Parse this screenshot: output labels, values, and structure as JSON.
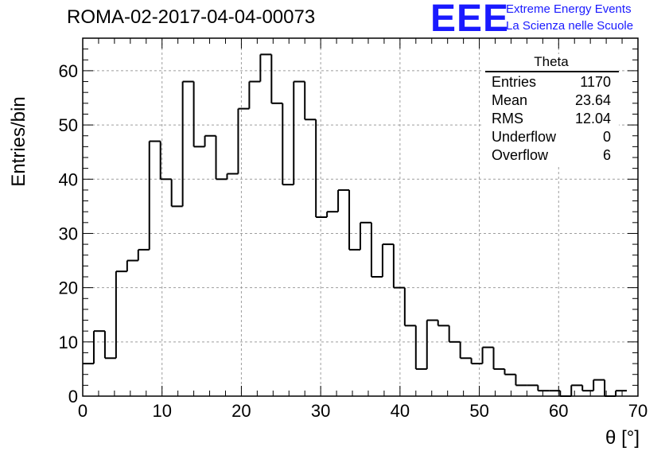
{
  "header": {
    "title": "ROMA-02-2017-04-04-00073",
    "logo_mark": "EEE",
    "logo_line1": "Extreme Energy Events",
    "logo_line2": "La Scienza nelle Scuole"
  },
  "stats": {
    "name": "Theta",
    "rows": [
      {
        "key": "Entries",
        "value": "1170"
      },
      {
        "key": "Mean",
        "value": "23.64"
      },
      {
        "key": "RMS",
        "value": "12.04"
      },
      {
        "key": "Underflow",
        "value": "0"
      },
      {
        "key": "Overflow",
        "value": "6"
      }
    ]
  },
  "colors": {
    "line": "#000000",
    "grid": "#9e9e9e",
    "logo": "#1a1aff"
  },
  "chart_data": {
    "type": "histogram",
    "title": "ROMA-02-2017-04-04-00073",
    "xlabel": "θ [°]",
    "ylabel": "Entries/bin",
    "xlim": [
      0,
      70
    ],
    "ylim": [
      0,
      66
    ],
    "bin_width": 1.4,
    "x_ticks": [
      0,
      10,
      20,
      30,
      40,
      50,
      60,
      70
    ],
    "y_ticks": [
      0,
      10,
      20,
      30,
      40,
      50,
      60
    ],
    "grid": true,
    "legend": "top-right stats box",
    "values": [
      6,
      12,
      7,
      23,
      25,
      27,
      47,
      40,
      35,
      58,
      46,
      48,
      40,
      41,
      53,
      58,
      63,
      54,
      39,
      58,
      51,
      33,
      34,
      38,
      27,
      32,
      22,
      28,
      20,
      13,
      5,
      14,
      13,
      10,
      7,
      6,
      9,
      5,
      4,
      2,
      2,
      1,
      1,
      0,
      2,
      1,
      3,
      0,
      1
    ]
  }
}
